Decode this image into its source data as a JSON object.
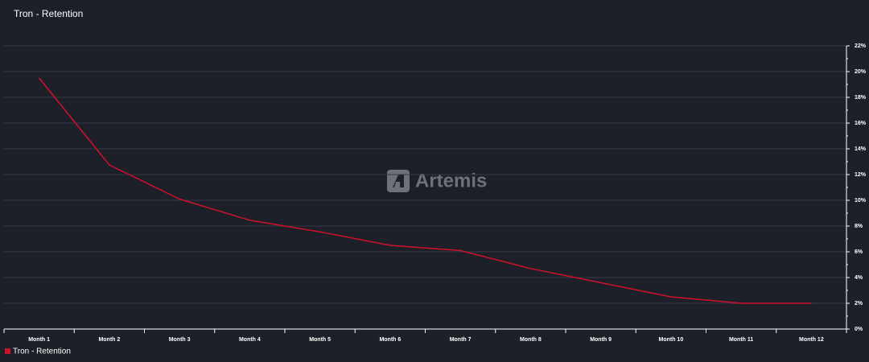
{
  "chart_data": {
    "type": "line",
    "title": "Tron - Retention",
    "watermark": "Artemis",
    "categories": [
      "Month 1",
      "Month 2",
      "Month 3",
      "Month 4",
      "Month 5",
      "Month 6",
      "Month 7",
      "Month 8",
      "Month 9",
      "Month 10",
      "Month 11",
      "Month 12"
    ],
    "series": [
      {
        "name": "Tron - Retention",
        "color": "#d0112b",
        "values": [
          19.5,
          12.75,
          10.1,
          8.45,
          7.55,
          6.5,
          6.1,
          4.7,
          3.6,
          2.5,
          2.0,
          2.0
        ]
      }
    ],
    "ylim": [
      0,
      22
    ],
    "yticks": [
      {
        "value": 0,
        "label": "0%"
      },
      {
        "value": 2,
        "label": "2%"
      },
      {
        "value": 4,
        "label": "4%"
      },
      {
        "value": 6,
        "label": "6%"
      },
      {
        "value": 8,
        "label": "8%"
      },
      {
        "value": 10,
        "label": "10%"
      },
      {
        "value": 12,
        "label": "12%"
      },
      {
        "value": 14,
        "label": "14%"
      },
      {
        "value": 16,
        "label": "16%"
      },
      {
        "value": 18,
        "label": "18%"
      },
      {
        "value": 20,
        "label": "20%"
      },
      {
        "value": 22,
        "label": "22%"
      }
    ],
    "grid": true,
    "legend": "bottom-left"
  }
}
